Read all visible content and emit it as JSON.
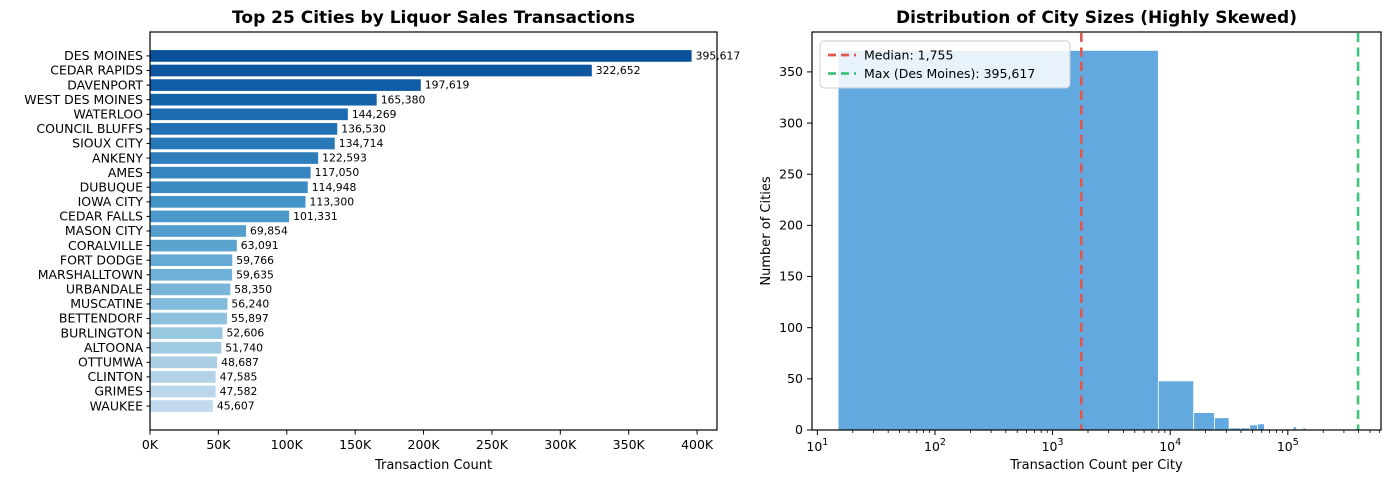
{
  "figure": {
    "background": "#ffffff"
  },
  "chart_data": [
    {
      "type": "bar",
      "orientation": "horizontal",
      "title": "Top 25 Cities by Liquor Sales Transactions",
      "xlabel": "Transaction Count",
      "ylabel": "",
      "xlim": [
        0,
        414600
      ],
      "grid": false,
      "xticks": [
        {
          "value": 0,
          "label": "0K"
        },
        {
          "value": 50000,
          "label": "50K"
        },
        {
          "value": 100000,
          "label": "100K"
        },
        {
          "value": 150000,
          "label": "150K"
        },
        {
          "value": 200000,
          "label": "200K"
        },
        {
          "value": 250000,
          "label": "250K"
        },
        {
          "value": 300000,
          "label": "300K"
        },
        {
          "value": 350000,
          "label": "350K"
        },
        {
          "value": 400000,
          "label": "400K"
        }
      ],
      "categories": [
        "DES MOINES",
        "CEDAR RAPIDS",
        "DAVENPORT",
        "WEST DES MOINES",
        "WATERLOO",
        "COUNCIL BLUFFS",
        "SIOUX CITY",
        "ANKENY",
        "AMES",
        "DUBUQUE",
        "IOWA CITY",
        "CEDAR FALLS",
        "MASON CITY",
        "CORALVILLE",
        "FORT DODGE",
        "MARSHALLTOWN",
        "URBANDALE",
        "MUSCATINE",
        "BETTENDORF",
        "BURLINGTON",
        "ALTOONA",
        "OTTUMWA",
        "CLINTON",
        "GRIMES",
        "WAUKEE"
      ],
      "values": [
        395617,
        322652,
        197619,
        165380,
        144269,
        136530,
        134714,
        122593,
        117050,
        114948,
        113300,
        101331,
        69854,
        63091,
        59766,
        59635,
        58350,
        56240,
        55897,
        52606,
        51740,
        48687,
        47585,
        47582,
        45607
      ],
      "value_labels": [
        "395,617",
        "322,652",
        "197,619",
        "165,380",
        "144,269",
        "136,530",
        "134,714",
        "122,593",
        "117,050",
        "114,948",
        "113,300",
        "101,331",
        "69,854",
        "63,091",
        "59,766",
        "59,635",
        "58,350",
        "56,240",
        "55,897",
        "52,606",
        "51,740",
        "48,687",
        "47,585",
        "47,582",
        "45,607"
      ],
      "bar_colors": [
        "#08509a",
        "#0c56a0",
        "#115da5",
        "#1663aa",
        "#1c6ab0",
        "#2171b5",
        "#2878b8",
        "#2e7ebc",
        "#3585bf",
        "#3c8cc3",
        "#4393c6",
        "#4b98ca",
        "#549ecd",
        "#5ca4d0",
        "#65aad4",
        "#6eb0d7",
        "#78b5d9",
        "#83bbdb",
        "#8dc1dd",
        "#98c7e0",
        "#a1cbe2",
        "#aacfe5",
        "#b2d2e8",
        "#bad6eb",
        "#c2daee"
      ]
    },
    {
      "type": "histogram",
      "title": "Distribution of City Sizes (Highly Skewed)",
      "xlabel": "Transaction Count per City",
      "ylabel": "Number of Cities",
      "xscale": "log",
      "xlim": [
        9,
        620000
      ],
      "ylim": [
        0,
        389
      ],
      "grid": false,
      "yticks": [
        0,
        50,
        100,
        150,
        200,
        250,
        300,
        350
      ],
      "xticks": [
        {
          "value": 10,
          "label": "10^1"
        },
        {
          "value": 100,
          "label": "10^2"
        },
        {
          "value": 1000,
          "label": "10^3"
        },
        {
          "value": 10000,
          "label": "10^4"
        },
        {
          "value": 100000,
          "label": "10^5"
        }
      ],
      "bar_color": "#61a9de",
      "bar_edge_color": "#ffffff",
      "bins": [
        {
          "x0": 15,
          "x1": 7927,
          "count": 371
        },
        {
          "x0": 7927,
          "x1": 15839,
          "count": 48
        },
        {
          "x0": 15839,
          "x1": 23751,
          "count": 17
        },
        {
          "x0": 23751,
          "x1": 31663,
          "count": 12
        },
        {
          "x0": 31663,
          "x1": 39575,
          "count": 2
        },
        {
          "x0": 39575,
          "x1": 47487,
          "count": 2
        },
        {
          "x0": 47487,
          "x1": 55399,
          "count": 5
        },
        {
          "x0": 55399,
          "x1": 63311,
          "count": 6
        },
        {
          "x0": 63311,
          "x1": 71223,
          "count": 1
        },
        {
          "x0": 94959,
          "x1": 102871,
          "count": 1
        },
        {
          "x0": 110783,
          "x1": 118695,
          "count": 3
        },
        {
          "x0": 118695,
          "x1": 126607,
          "count": 1
        },
        {
          "x0": 134519,
          "x1": 142431,
          "count": 2
        },
        {
          "x0": 142431,
          "x1": 150343,
          "count": 1
        },
        {
          "x0": 158255,
          "x1": 166167,
          "count": 1
        },
        {
          "x0": 189903,
          "x1": 197815,
          "count": 1
        },
        {
          "x0": 316495,
          "x1": 324407,
          "count": 1
        },
        {
          "x0": 387703,
          "x1": 395617,
          "count": 1
        }
      ],
      "annotations": {
        "median_line": {
          "value": 1755,
          "color": "#de584e",
          "style": "dashed"
        },
        "max_line": {
          "value": 395617,
          "color": "#3ec47d",
          "style": "dashed"
        }
      },
      "legend": {
        "position": "upper left",
        "items": [
          {
            "label": "Median: 1,755",
            "color": "#de584e",
            "style": "dashed"
          },
          {
            "label": "Max (Des Moines): 395,617",
            "color": "#3ec47d",
            "style": "dashed"
          }
        ]
      }
    }
  ]
}
